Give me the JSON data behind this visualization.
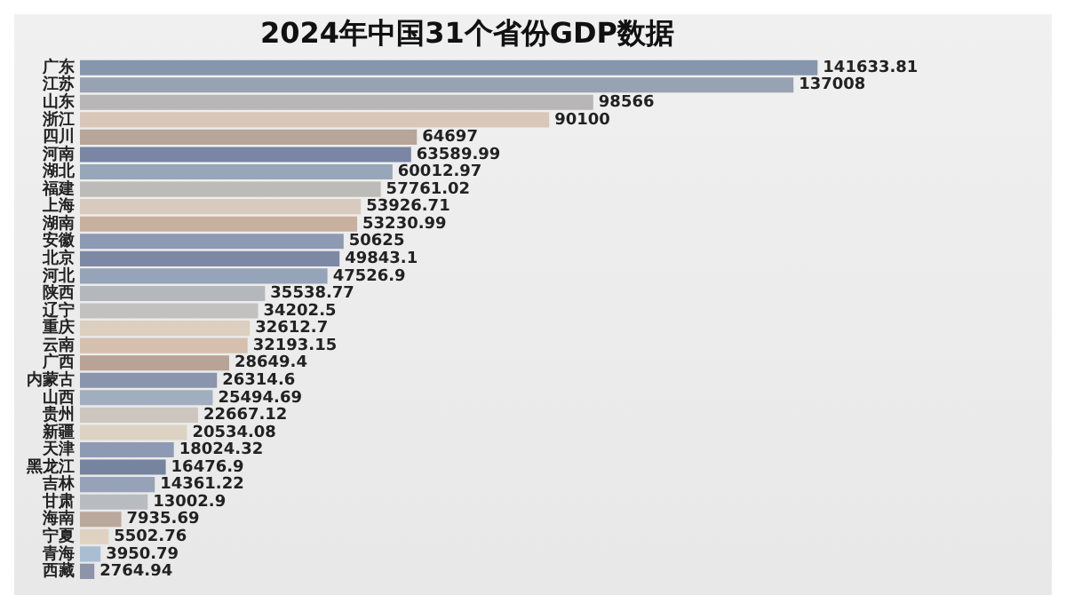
{
  "chart_data": {
    "type": "bar",
    "orientation": "horizontal",
    "data_labels": true,
    "title": "2024年中国31个省份GDP数据",
    "categories": [
      "广东",
      "江苏",
      "山东",
      "浙江",
      "四川",
      "河南",
      "湖北",
      "福建",
      "上海",
      "湖南",
      "安徽",
      "北京",
      "河北",
      "陕西",
      "辽宁",
      "重庆",
      "云南",
      "广西",
      "内蒙古",
      "山西",
      "贵州",
      "新疆",
      "天津",
      "黑龙江",
      "吉林",
      "甘肃",
      "海南",
      "宁夏",
      "青海",
      "西藏"
    ],
    "values": [
      141633.81,
      137008,
      98566,
      90100,
      64697,
      63589.99,
      60012.97,
      57761.02,
      53926.71,
      53230.99,
      50625,
      49843.1,
      47526.9,
      35538.77,
      34202.5,
      32612.7,
      32193.15,
      28649.4,
      26314.6,
      25494.69,
      22667.12,
      20534.08,
      18024.32,
      16476.9,
      14361.22,
      13002.9,
      7935.69,
      5502.76,
      3950.79,
      2764.94
    ],
    "colors": [
      "#8596ad",
      "#97a3b3",
      "#b8b6b6",
      "#d9c7b8",
      "#b8a59a",
      "#7a86a3",
      "#97a6b9",
      "#bdbbb8",
      "#d8cabd",
      "#c9b09e",
      "#8e99b3",
      "#7d88a5",
      "#95a4b8",
      "#b4b8bc",
      "#c3c1bf",
      "#dccfbf",
      "#d5c0ae",
      "#b8a396",
      "#8a94ad",
      "#a0aec0",
      "#cdc6be",
      "#ddd3c2",
      "#8e9ab3",
      "#7784a0",
      "#95a2b8",
      "#b8bcc0",
      "#baa89c",
      "#e0d2c0",
      "#a9bdd3",
      "#8d93a8"
    ],
    "grid": false,
    "legend": false
  }
}
